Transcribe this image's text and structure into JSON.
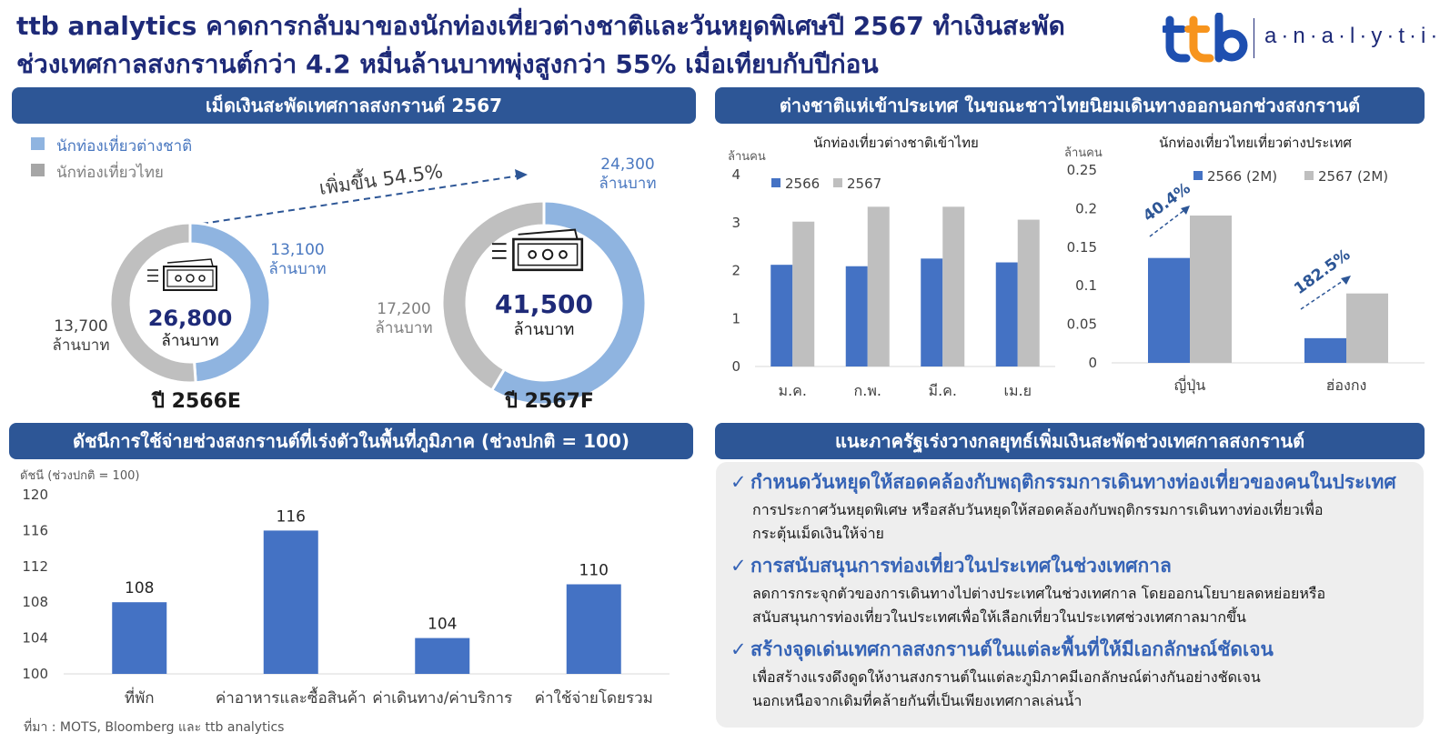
{
  "header": {
    "title_line1": "ttb analytics คาดการกลับมาของนักท่องเที่ยวต่างชาติและวันหยุดพิเศษปี 2567 ทำเงินสะพัด",
    "title_line2": "ช่วงเทศกาลสงกรานต์กว่า 4.2 หมื่นล้านบาทพุ่งสูงกว่า 55% เมื่อเทียบกับปีก่อน",
    "logo_mark": "ttb",
    "logo_text": "a·n·a·l·y·t·i·c·s"
  },
  "colors": {
    "navy": "#1e2a78",
    "banner": "#2d5696",
    "blue": "#4472c4",
    "light_blue": "#8fb4e0",
    "grey": "#bfbfbf",
    "accent_blue": "#3563b6"
  },
  "donut_panel": {
    "banner": "เม็ดเงินสะพัดเทศกาลสงกรานต์ 2567",
    "legend_foreign": "นักท่องเที่ยวต่างชาติ",
    "legend_thai": "นักท่องเที่ยวไทย",
    "growth_label": "เพิ่มขึ้น 54.5%",
    "unit": "ล้านบาท",
    "icon": "money-icon"
  },
  "trend_panel": {
    "banner": "ต่างชาติแห่เข้าประเทศ ในขณะชาวไทยนิยมเดินทางออกนอกช่วงสงกรานต์",
    "left_unit": "ล้านคน",
    "right_unit": "ล้านคน",
    "right_growth": [
      "40.4%",
      "182.5%"
    ]
  },
  "index_panel": {
    "banner": "ดัชนีการใช้จ่ายช่วงสงกรานต์ที่เร่งตัวในพื้นที่ภูมิภาค (ช่วงปกติ = 100)",
    "axis_caption": "ดัชนี (ช่วงปกติ = 100)"
  },
  "recommend": {
    "banner": "แนะภาครัฐเร่งวางกลยุทธ์เพิ่มเงินสะพัดช่วงเทศกาลสงกรานต์",
    "check": "✓",
    "items": [
      {
        "head": "กำหนดวันหยุดให้สอดคล้องกับพฤติกรรมการเดินทางท่องเที่ยวของคนในประเทศ",
        "body1": "การประกาศวันหยุดพิเศษ  หรือสลับวันหยุดให้สอดคล้องกับพฤติกรรมการเดินทางท่องเที่ยวเพื่อ",
        "body2": "กระตุ้นเม็ดเงินให้จ่าย"
      },
      {
        "head": "การสนับสนุนการท่องเที่ยวในประเทศในช่วงเทศกาล",
        "body1": "ลดการกระจุกตัวของการเดินทางไปต่างประเทศในช่วงเทศกาล  โดยออกนโยบายลดหย่อยหรือ",
        "body2": "สนับสนุนการท่องเที่ยวในประเทศเพื่อให้เลือกเที่ยวในประเทศช่วงเทศกาลมากขึ้น"
      },
      {
        "head": "สร้างจุดเด่นเทศกาลสงกรานต์ในแต่ละพื้นที่ให้มีเอกลักษณ์ชัดเจน",
        "body1": "เพื่อสร้างแรงดึงดูดให้งานสงกรานต์ในแต่ละภูมิภาคมีเอกลักษณ์ต่างกันอย่างชัดเจน",
        "body2": "นอกเหนือจากเดิมที่คล้ายกันที่เป็นเพียงเทศกาลเล่นน้ำ"
      }
    ]
  },
  "source": "ที่มา : MOTS, Bloomberg และ ttb  analytics",
  "chart_data": [
    {
      "type": "pie",
      "donut": true,
      "label": "ปี 2566E",
      "total": "26,800",
      "unit": "ล้านบาท",
      "slices": [
        {
          "name": "นักท่องเที่ยวต่างชาติ",
          "value": 13100,
          "text": "13,100"
        },
        {
          "name": "นักท่องเที่ยวไทย",
          "value": 13700,
          "text": "13,700"
        }
      ]
    },
    {
      "type": "pie",
      "donut": true,
      "label": "ปี 2567F",
      "total": "41,500",
      "unit": "ล้านบาท",
      "slices": [
        {
          "name": "นักท่องเที่ยวต่างชาติ",
          "value": 24300,
          "text": "24,300"
        },
        {
          "name": "นักท่องเที่ยวไทย",
          "value": 17200,
          "text": "17,200"
        }
      ]
    },
    {
      "type": "bar",
      "title": "นักท่องเที่ยวต่างชาติเข้าไทย",
      "ylabel": "ล้านคน",
      "categories": [
        "ม.ค.",
        "ก.พ.",
        "มี.ค.",
        "เม.ย"
      ],
      "series": [
        {
          "name": "2566",
          "values": [
            2.12,
            2.09,
            2.25,
            2.17
          ]
        },
        {
          "name": "2567",
          "values": [
            3.02,
            3.33,
            3.33,
            3.06
          ]
        }
      ],
      "ylim": [
        0,
        4
      ],
      "yticks": [
        "0",
        "1",
        "2",
        "3",
        "4"
      ],
      "grid": false,
      "legend": "top-left"
    },
    {
      "type": "bar",
      "title": "นักท่องเที่ยวไทยเที่ยวต่างประเทศ",
      "ylabel": "ล้านคน",
      "categories": [
        "ญี่ปุ่น",
        "ฮ่องกง"
      ],
      "series": [
        {
          "name": "2566 (2M)",
          "values": [
            0.136,
            0.032
          ]
        },
        {
          "name": "2567 (2M)",
          "values": [
            0.191,
            0.09
          ]
        }
      ],
      "ylim": [
        0,
        0.25
      ],
      "yticks": [
        "0",
        "0.05",
        "0.1",
        "0.15",
        "0.2",
        "0.25"
      ],
      "grid": false,
      "legend": "top"
    },
    {
      "type": "bar",
      "categories": [
        "ที่พัก",
        "ค่าอาหารและซื้อสินค้า",
        "ค่าเดินทาง/ค่าบริการ",
        "ค่าใช้จ่ายโดยรวม"
      ],
      "values": [
        108,
        116,
        104,
        110
      ],
      "ylim": [
        100,
        120
      ],
      "yticks": [
        "100",
        "104",
        "108",
        "112",
        "116",
        "120"
      ],
      "grid": false
    }
  ]
}
